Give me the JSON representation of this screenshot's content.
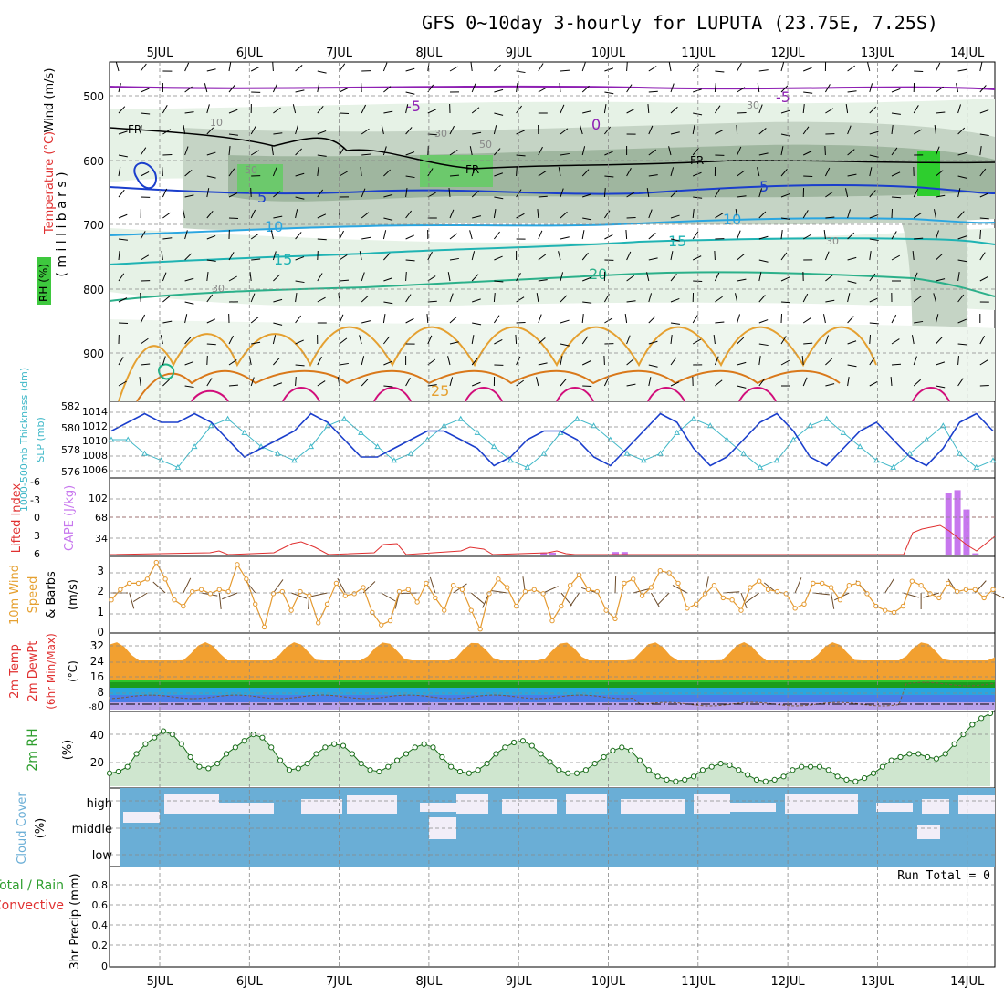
{
  "title": "GFS 0~10day 3-hourly for LUPUTA (23.75E, 7.25S)",
  "dates": [
    "5JUL",
    "6JUL",
    "7JUL",
    "8JUL",
    "9JUL",
    "10JUL",
    "11JUL",
    "12JUL",
    "13JUL",
    "14JUL"
  ],
  "colors": {
    "cloud": "#6aaed6",
    "clear": "#f2eef8",
    "dewpt": "#b8a0e8",
    "cape": "#c777ee",
    "slp": "#40b8c8",
    "thick": "#1a3ecc",
    "wind": "#e59a30",
    "rh": "#2e9e2e",
    "li": "#e03030"
  },
  "panels": {
    "upper": {
      "ylabel1": "Wind (m/s)",
      "ylabel2": "Temperature (°C)",
      "ylabel3": "RH (%)",
      "axis_label": "( m i l l i b a r s )",
      "ticks": [
        "500",
        "600",
        "700",
        "800",
        "900"
      ],
      "contour_labels": [
        "-5",
        "-5",
        "0",
        "5",
        "5",
        "10",
        "10",
        "15",
        "15",
        "20",
        "25",
        "FR",
        "FR",
        "FR",
        "10",
        "30",
        "50",
        "30",
        "30",
        "50",
        "30"
      ]
    },
    "thickness": {
      "ylabel_left": "1000-500mb Thickness (dm)",
      "ylabel_right": "SLP (mb)",
      "ticks_left": [
        "582",
        "580",
        "578",
        "576"
      ],
      "ticks_right": [
        "1014",
        "1012",
        "1010",
        "1008",
        "1006"
      ]
    },
    "li": {
      "ylabel_left": "Lifted Index",
      "ylabel_right": "CAPE (J/kg)",
      "ticks_left": [
        "-6",
        "-3",
        "0",
        "3",
        "6"
      ],
      "ticks_right": [
        "102",
        "68",
        "34"
      ]
    },
    "wind10": {
      "ylabel1": "10m Wind",
      "ylabel2": "Speed",
      "ylabel3": "& Barbs",
      "unit": "(m/s)",
      "ticks": [
        "3",
        "2",
        "1",
        "0"
      ]
    },
    "temp": {
      "ylabel1": "2m Temp",
      "ylabel2": "2m DewPt",
      "ylabel3": "(6hr Min/Max)",
      "unit": "(°C)",
      "ticks": [
        "32",
        "24",
        "16",
        "8",
        "0"
      ],
      "lowtick": "-8"
    },
    "rh": {
      "ylabel": "2m RH",
      "unit": "(%)",
      "ticks": [
        "40",
        "20"
      ]
    },
    "cloud": {
      "ylabel": "Cloud Cover",
      "unit": "(%)",
      "rows": [
        "high",
        "middle",
        "low"
      ]
    },
    "precip": {
      "ylabel1": "Total / Rain",
      "ylabel2": "Convective",
      "ylabel3": "3hr Precip (mm)",
      "ticks": [
        "0.8",
        "0.6",
        "0.4",
        "0.2",
        "0"
      ],
      "run_total": "Run Total = 0"
    }
  },
  "chart_data": [
    {
      "type": "line",
      "name": "2m RH",
      "xlabel": "",
      "ylabel": "2m RH (%)",
      "ylim": [
        10,
        55
      ],
      "series": [
        {
          "name": "2m RH",
          "values": [
            18,
            19,
            22,
            30,
            36,
            40,
            44,
            42,
            36,
            28,
            22,
            21,
            24,
            30,
            34,
            38,
            42,
            40,
            34,
            26,
            20,
            21,
            24,
            30,
            34,
            36,
            35,
            30,
            24,
            20,
            19,
            22,
            26,
            30,
            34,
            36,
            34,
            28,
            22,
            19,
            18,
            20,
            24,
            30,
            34,
            37,
            38,
            35,
            30,
            25,
            20,
            18,
            18,
            20,
            24,
            28,
            32,
            34,
            32,
            26,
            20,
            16,
            14,
            13,
            14,
            16,
            20,
            22,
            24,
            23,
            20,
            17,
            14,
            13,
            14,
            16,
            20,
            22,
            22,
            22,
            20,
            16,
            14,
            13,
            15,
            18,
            22,
            26,
            28,
            30,
            30,
            28,
            27,
            30,
            36,
            42,
            48,
            52,
            55
          ]
        }
      ]
    },
    {
      "type": "line",
      "name": "10m Wind Speed",
      "xlabel": "",
      "ylabel": "(m/s)",
      "ylim": [
        0,
        3.5
      ],
      "series": [
        {
          "name": "10m Wind Speed",
          "values": [
            1.5,
            2.0,
            2.3,
            2.3,
            2.5,
            3.3,
            2.5,
            1.5,
            1.2,
            1.9,
            2.0,
            1.8,
            2.0,
            1.9,
            3.2,
            2.5,
            1.3,
            0.2,
            1.8,
            1.9,
            1.0,
            1.9,
            1.7,
            0.4,
            1.3,
            2.3,
            1.7,
            1.8,
            2.1,
            0.9,
            0.3,
            0.5,
            1.9,
            2.0,
            1.4,
            2.3,
            1.6,
            1.0,
            2.2,
            2.0,
            1.0,
            0.1,
            1.8,
            2.5,
            2.1,
            1.2,
            1.9,
            2.0,
            1.8,
            0.5,
            1.2,
            2.2,
            2.7,
            2.0,
            1.9,
            1.0,
            0.6,
            2.3,
            2.5,
            1.7,
            2.1,
            2.9,
            2.8,
            2.3,
            1.1,
            1.3,
            1.8,
            2.2,
            1.6,
            1.5,
            1.0,
            2.1,
            2.4,
            2.0,
            1.9,
            1.8,
            1.1,
            1.3,
            2.3,
            2.3,
            2.1,
            1.5,
            2.2,
            2.3,
            1.8,
            1.2,
            1.0,
            0.9,
            1.2,
            2.4,
            2.2,
            1.8,
            1.6,
            2.3,
            1.9,
            2.0,
            2.0,
            1.6,
            2.0
          ]
        }
      ]
    },
    {
      "type": "line",
      "name": "1000-500mb Thickness / SLP",
      "series": [
        {
          "name": "Thickness",
          "values": [
            580,
            581,
            582,
            581,
            581,
            582,
            581,
            579,
            577,
            578,
            579,
            580,
            582,
            581,
            579,
            577,
            577,
            578,
            579,
            580,
            580,
            579,
            578,
            576,
            577,
            579,
            580,
            580,
            579,
            577,
            576,
            578,
            580,
            582,
            581,
            578,
            576,
            577,
            579,
            581,
            582,
            580,
            577,
            576,
            578,
            580,
            581,
            579,
            577,
            576,
            578,
            581,
            582,
            580
          ]
        },
        {
          "name": "SLP",
          "values": [
            1010,
            1010,
            1008,
            1007,
            1006,
            1009,
            1012,
            1013,
            1011,
            1009,
            1008,
            1007,
            1009,
            1012,
            1013,
            1011,
            1009,
            1007,
            1008,
            1010,
            1012,
            1013,
            1011,
            1009,
            1007,
            1006,
            1008,
            1011,
            1013,
            1012,
            1010,
            1008,
            1007,
            1008,
            1011,
            1013,
            1012,
            1010,
            1008,
            1006,
            1007,
            1010,
            1012,
            1013,
            1011,
            1009,
            1007,
            1006,
            1008,
            1010,
            1012,
            1008,
            1006,
            1007
          ]
        }
      ]
    },
    {
      "type": "bar",
      "name": "CAPE",
      "series": [
        {
          "name": "CAPE",
          "values": [
            0,
            0,
            0,
            0,
            0,
            0,
            0,
            0,
            0,
            0,
            0,
            0,
            0,
            0,
            0,
            0,
            0,
            0,
            0,
            0,
            0,
            0,
            0,
            0,
            0,
            0,
            0,
            0,
            0,
            0,
            0,
            0,
            0,
            0,
            0,
            0,
            0,
            0,
            0,
            0,
            0,
            0,
            0,
            0,
            0,
            0,
            0,
            0,
            3,
            3,
            0,
            0,
            0,
            0,
            0,
            0,
            4,
            4,
            0,
            0,
            0,
            0,
            0,
            0,
            0,
            0,
            0,
            0,
            0,
            0,
            0,
            0,
            0,
            0,
            0,
            0,
            0,
            0,
            0,
            0,
            0,
            0,
            0,
            0,
            0,
            0,
            0,
            0,
            0,
            0,
            0,
            0,
            0,
            95,
            100,
            70,
            2,
            0,
            0
          ]
        }
      ]
    }
  ]
}
